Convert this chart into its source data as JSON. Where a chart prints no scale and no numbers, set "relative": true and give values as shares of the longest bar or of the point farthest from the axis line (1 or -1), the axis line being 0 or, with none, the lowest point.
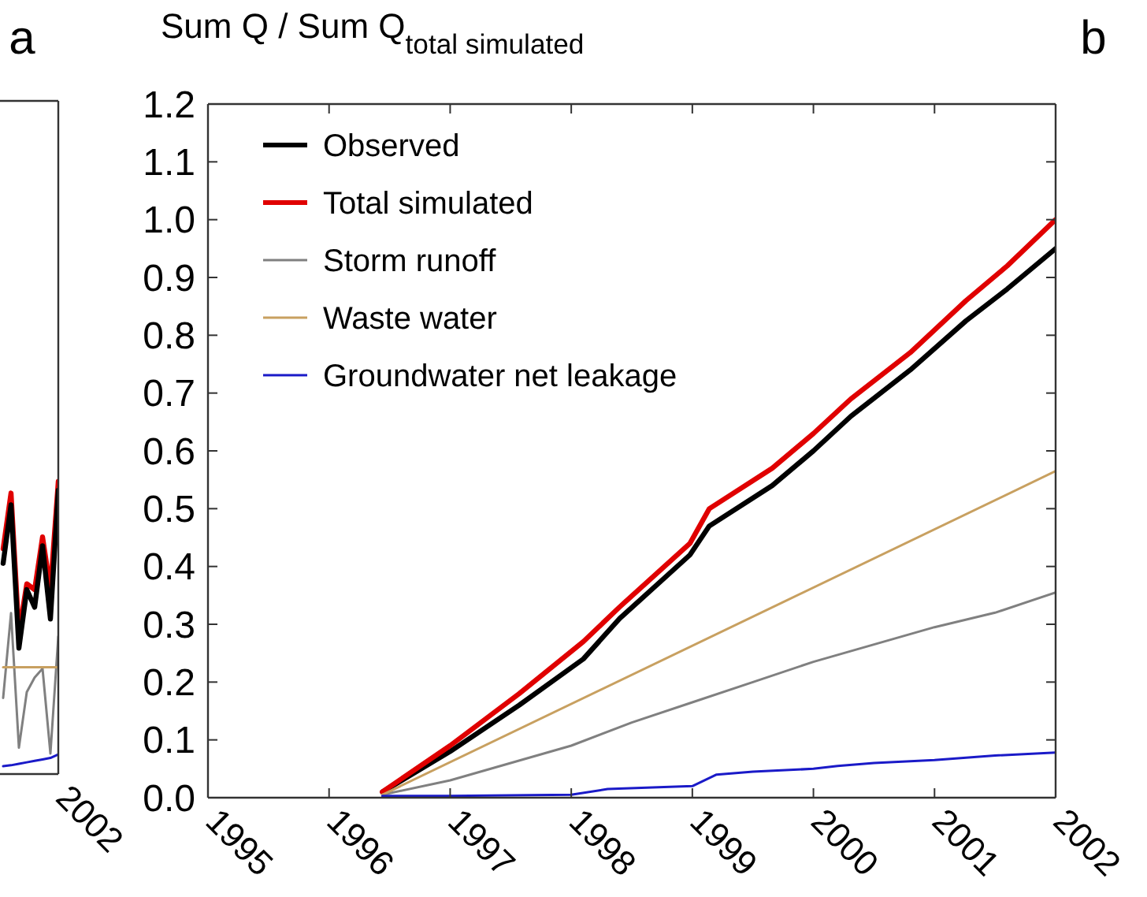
{
  "chart_data": [
    {
      "type": "line",
      "title": "a",
      "relative": true,
      "annotations": [
        "2002"
      ],
      "categories": [
        null,
        null,
        null,
        null,
        null,
        null,
        null,
        null
      ],
      "grid": false,
      "legend": false,
      "series": [
        {
          "color": "#808080",
          "values": [
            0.26,
            0.55,
            0.09,
            0.28,
            0.33,
            0.36,
            0.07,
            0.47
          ]
        },
        {
          "color": "#c8a060",
          "values": [
            0.365,
            0.365,
            0.365,
            0.365,
            0.365,
            0.365,
            0.365,
            0.365
          ]
        },
        {
          "color": "#1a1ac8",
          "values": [
            0.027,
            0.03,
            0.035,
            0.04,
            0.045,
            0.05,
            0.055,
            0.067
          ]
        },
        {
          "color": "#e00000",
          "values": [
            0.77,
            0.96,
            0.48,
            0.65,
            0.63,
            0.81,
            0.63,
            1.0
          ]
        },
        {
          "color": "#000000",
          "values": [
            0.72,
            0.92,
            0.43,
            0.63,
            0.57,
            0.78,
            0.53,
            0.97
          ]
        }
      ]
    },
    {
      "type": "line",
      "title": "b",
      "ylabel": "Sum Q / Sum Q$_{total simulated}$",
      "xlim": [
        1995,
        2002
      ],
      "xticks": [
        1995,
        1996,
        1997,
        1998,
        1999,
        2000,
        2001,
        2002
      ],
      "ylim": [
        0,
        1.2
      ],
      "yticks": [
        {
          "value": 0,
          "label": "0.0"
        },
        {
          "value": 0.1,
          "label": "0.1"
        },
        {
          "value": 0.2,
          "label": "0.2"
        },
        {
          "value": 0.3,
          "label": "0.3"
        },
        {
          "value": 0.4,
          "label": "0.4"
        },
        {
          "value": 0.5,
          "label": "0.5"
        },
        {
          "value": 0.6,
          "label": "0.6"
        },
        {
          "value": 0.7,
          "label": "0.7"
        },
        {
          "value": 0.8,
          "label": "0.8"
        },
        {
          "value": 0.9,
          "label": "0.9"
        },
        {
          "value": 1.0,
          "label": "1.0"
        },
        {
          "value": 1.1,
          "label": "1.1"
        },
        {
          "value": 1.2,
          "label": "1.2"
        }
      ],
      "grid": false,
      "legend": "top left",
      "series": [
        {
          "name": "Observed",
          "color": "#000000",
          "x": [
            1996.44,
            1997,
            1997.57,
            1998.1,
            1998.4,
            1998.98,
            1999.14,
            1999.66,
            2000,
            2000.31,
            2000.8,
            2001.26,
            2001.6,
            2002
          ],
          "values": [
            0.01,
            0.08,
            0.16,
            0.24,
            0.31,
            0.42,
            0.47,
            0.54,
            0.6,
            0.66,
            0.74,
            0.825,
            0.88,
            0.95
          ]
        },
        {
          "name": "Total simulated",
          "color": "#e00000",
          "x": [
            1996.44,
            1997,
            1997.57,
            1998.1,
            1998.4,
            1998.98,
            1999.14,
            1999.66,
            2000,
            2000.31,
            2000.8,
            2001.26,
            2001.6,
            2002
          ],
          "values": [
            0.01,
            0.09,
            0.18,
            0.27,
            0.33,
            0.44,
            0.5,
            0.57,
            0.63,
            0.69,
            0.77,
            0.86,
            0.92,
            1.0
          ]
        },
        {
          "name": "Storm runoff",
          "color": "#808080",
          "x": [
            1996.44,
            1997,
            1997.5,
            1998,
            1998.5,
            1999,
            1999.5,
            2000,
            2000.5,
            2001,
            2001.5,
            2002
          ],
          "values": [
            0.005,
            0.03,
            0.06,
            0.09,
            0.13,
            0.165,
            0.2,
            0.235,
            0.265,
            0.295,
            0.32,
            0.355
          ]
        },
        {
          "name": "Waste water",
          "color": "#c8a060",
          "x": [
            1996.44,
            2002
          ],
          "values": [
            0.005,
            0.565
          ]
        },
        {
          "name": "Groundwater net leakage",
          "color": "#1a1ac8",
          "x": [
            1996.44,
            1997,
            1998,
            1998.3,
            1999,
            1999.2,
            1999.5,
            2000,
            2000.2,
            2000.5,
            2001,
            2001.5,
            2002
          ],
          "values": [
            0.003,
            0.003,
            0.005,
            0.015,
            0.02,
            0.04,
            0.045,
            0.05,
            0.055,
            0.06,
            0.065,
            0.073,
            0.078
          ]
        }
      ]
    }
  ]
}
